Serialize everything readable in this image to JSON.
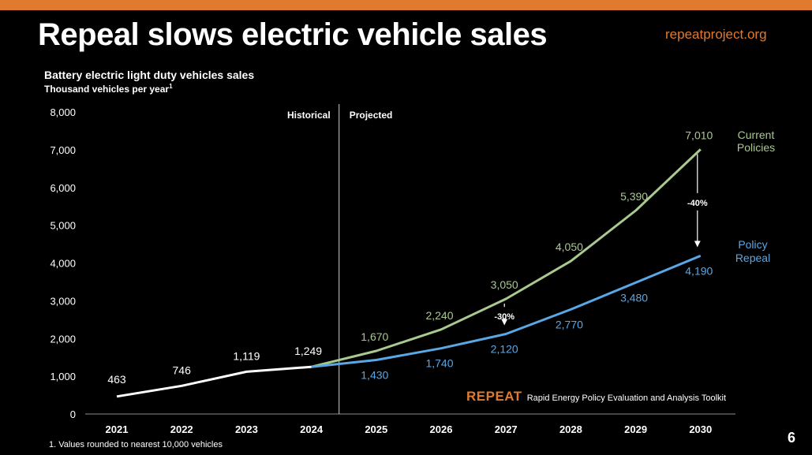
{
  "slide": {
    "title": "Repeal slows electric vehicle sales",
    "site": "repeatproject.org",
    "subtitle": "Battery electric light duty vehicles sales",
    "unit_label": "Thousand vehicles per year",
    "unit_footnote_mark": "1",
    "footnote": "1. Values rounded to nearest 10,000 vehicles",
    "page_number": "6",
    "logo_word": "REPEAT",
    "logo_tagline": "Rapid Energy Policy Evaluation and Analysis Toolkit"
  },
  "chart_data": {
    "type": "line",
    "title": "Battery electric light duty vehicles sales",
    "ylabel": "Thousand vehicles per year",
    "ylim": [
      0,
      8000
    ],
    "yticks": [
      0,
      1000,
      2000,
      3000,
      4000,
      5000,
      6000,
      7000,
      8000
    ],
    "ytick_labels": [
      "0",
      "1,000",
      "2,000",
      "3,000",
      "4,000",
      "5,000",
      "6,000",
      "7,000",
      "8,000"
    ],
    "x": [
      "2021",
      "2022",
      "2023",
      "2024",
      "2025",
      "2026",
      "2027",
      "2028",
      "2029",
      "2030"
    ],
    "grid": false,
    "divider_label_left": "Historical",
    "divider_label_right": "Projected",
    "series": [
      {
        "name": "Historical",
        "color": "#ffffff",
        "x": [
          "2021",
          "2022",
          "2023",
          "2024"
        ],
        "values": [
          463,
          746,
          1119,
          1249
        ],
        "labels": [
          "463",
          "746",
          "1,119",
          "1,249"
        ]
      },
      {
        "name": "Current Policies",
        "color": "#a9c98f",
        "x": [
          "2024",
          "2025",
          "2026",
          "2027",
          "2028",
          "2029",
          "2030"
        ],
        "values": [
          1249,
          1670,
          2240,
          3050,
          4050,
          5390,
          7010
        ],
        "labels": [
          "",
          "1,670",
          "2,240",
          "3,050",
          "4,050",
          "5,390",
          "7,010"
        ],
        "legend_lines": [
          "Current",
          "Policies"
        ]
      },
      {
        "name": "Policy Repeal",
        "color": "#5aa7e6",
        "x": [
          "2024",
          "2025",
          "2026",
          "2027",
          "2028",
          "2029",
          "2030"
        ],
        "values": [
          1249,
          1430,
          1740,
          2120,
          2770,
          3480,
          4190
        ],
        "labels": [
          "",
          "1,430",
          "1,740",
          "2,120",
          "2,770",
          "3,480",
          "4,190"
        ],
        "legend_lines": [
          "Policy",
          "Repeal"
        ]
      }
    ],
    "annotations": [
      {
        "x": "2027",
        "from": 3050,
        "to": 2120,
        "text": "-30%"
      },
      {
        "x": "2030",
        "from": 7010,
        "to": 4190,
        "text": "-40%"
      }
    ]
  }
}
